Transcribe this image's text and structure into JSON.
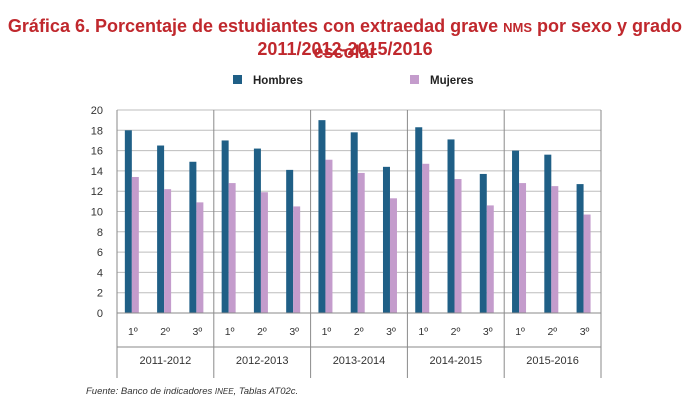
{
  "title_line1_a": "Gráfica 6. Porcentaje de estudiantes con extraedad grave ",
  "title_line1_sc": "NMS",
  "title_line1_b": " por sexo y grado escolar",
  "title_line2": "2011/2012-2015/2016",
  "source_a": "Fuente: Banco de indicadores ",
  "source_sc": "INEE",
  "source_b": ", Tablas AT02c.",
  "colors": {
    "hombres": "#1f5f86",
    "mujeres": "#c49ccc",
    "grid": "#bdbdbd",
    "axis": "#8a8a8a"
  },
  "chart_data": {
    "type": "bar",
    "legend_position": "top",
    "grid": true,
    "ylim": [
      0,
      20
    ],
    "yticks": [
      0,
      2,
      4,
      6,
      8,
      10,
      12,
      14,
      16,
      18,
      20
    ],
    "groups": [
      {
        "label": "2011-2012",
        "grades": [
          "1º",
          "2º",
          "3º"
        ],
        "hombres": [
          18.0,
          16.5,
          14.9
        ],
        "mujeres": [
          13.4,
          12.2,
          10.9
        ]
      },
      {
        "label": "2012-2013",
        "grades": [
          "1º",
          "2º",
          "3º"
        ],
        "hombres": [
          17.0,
          16.2,
          14.1
        ],
        "mujeres": [
          12.8,
          11.9,
          10.5
        ]
      },
      {
        "label": "2013-2014",
        "grades": [
          "1º",
          "2º",
          "3º"
        ],
        "hombres": [
          19.0,
          17.8,
          14.4
        ],
        "mujeres": [
          15.1,
          13.8,
          11.3
        ]
      },
      {
        "label": "2014-2015",
        "grades": [
          "1º",
          "2º",
          "3º"
        ],
        "hombres": [
          18.3,
          17.1,
          13.7
        ],
        "mujeres": [
          14.7,
          13.2,
          10.6
        ]
      },
      {
        "label": "2015-2016",
        "grades": [
          "1º",
          "2º",
          "3º"
        ],
        "hombres": [
          16.0,
          15.6,
          12.7
        ],
        "mujeres": [
          12.8,
          12.5,
          9.7
        ]
      }
    ],
    "series": [
      {
        "key": "hombres",
        "name": "Hombres"
      },
      {
        "key": "mujeres",
        "name": "Mujeres"
      }
    ]
  }
}
